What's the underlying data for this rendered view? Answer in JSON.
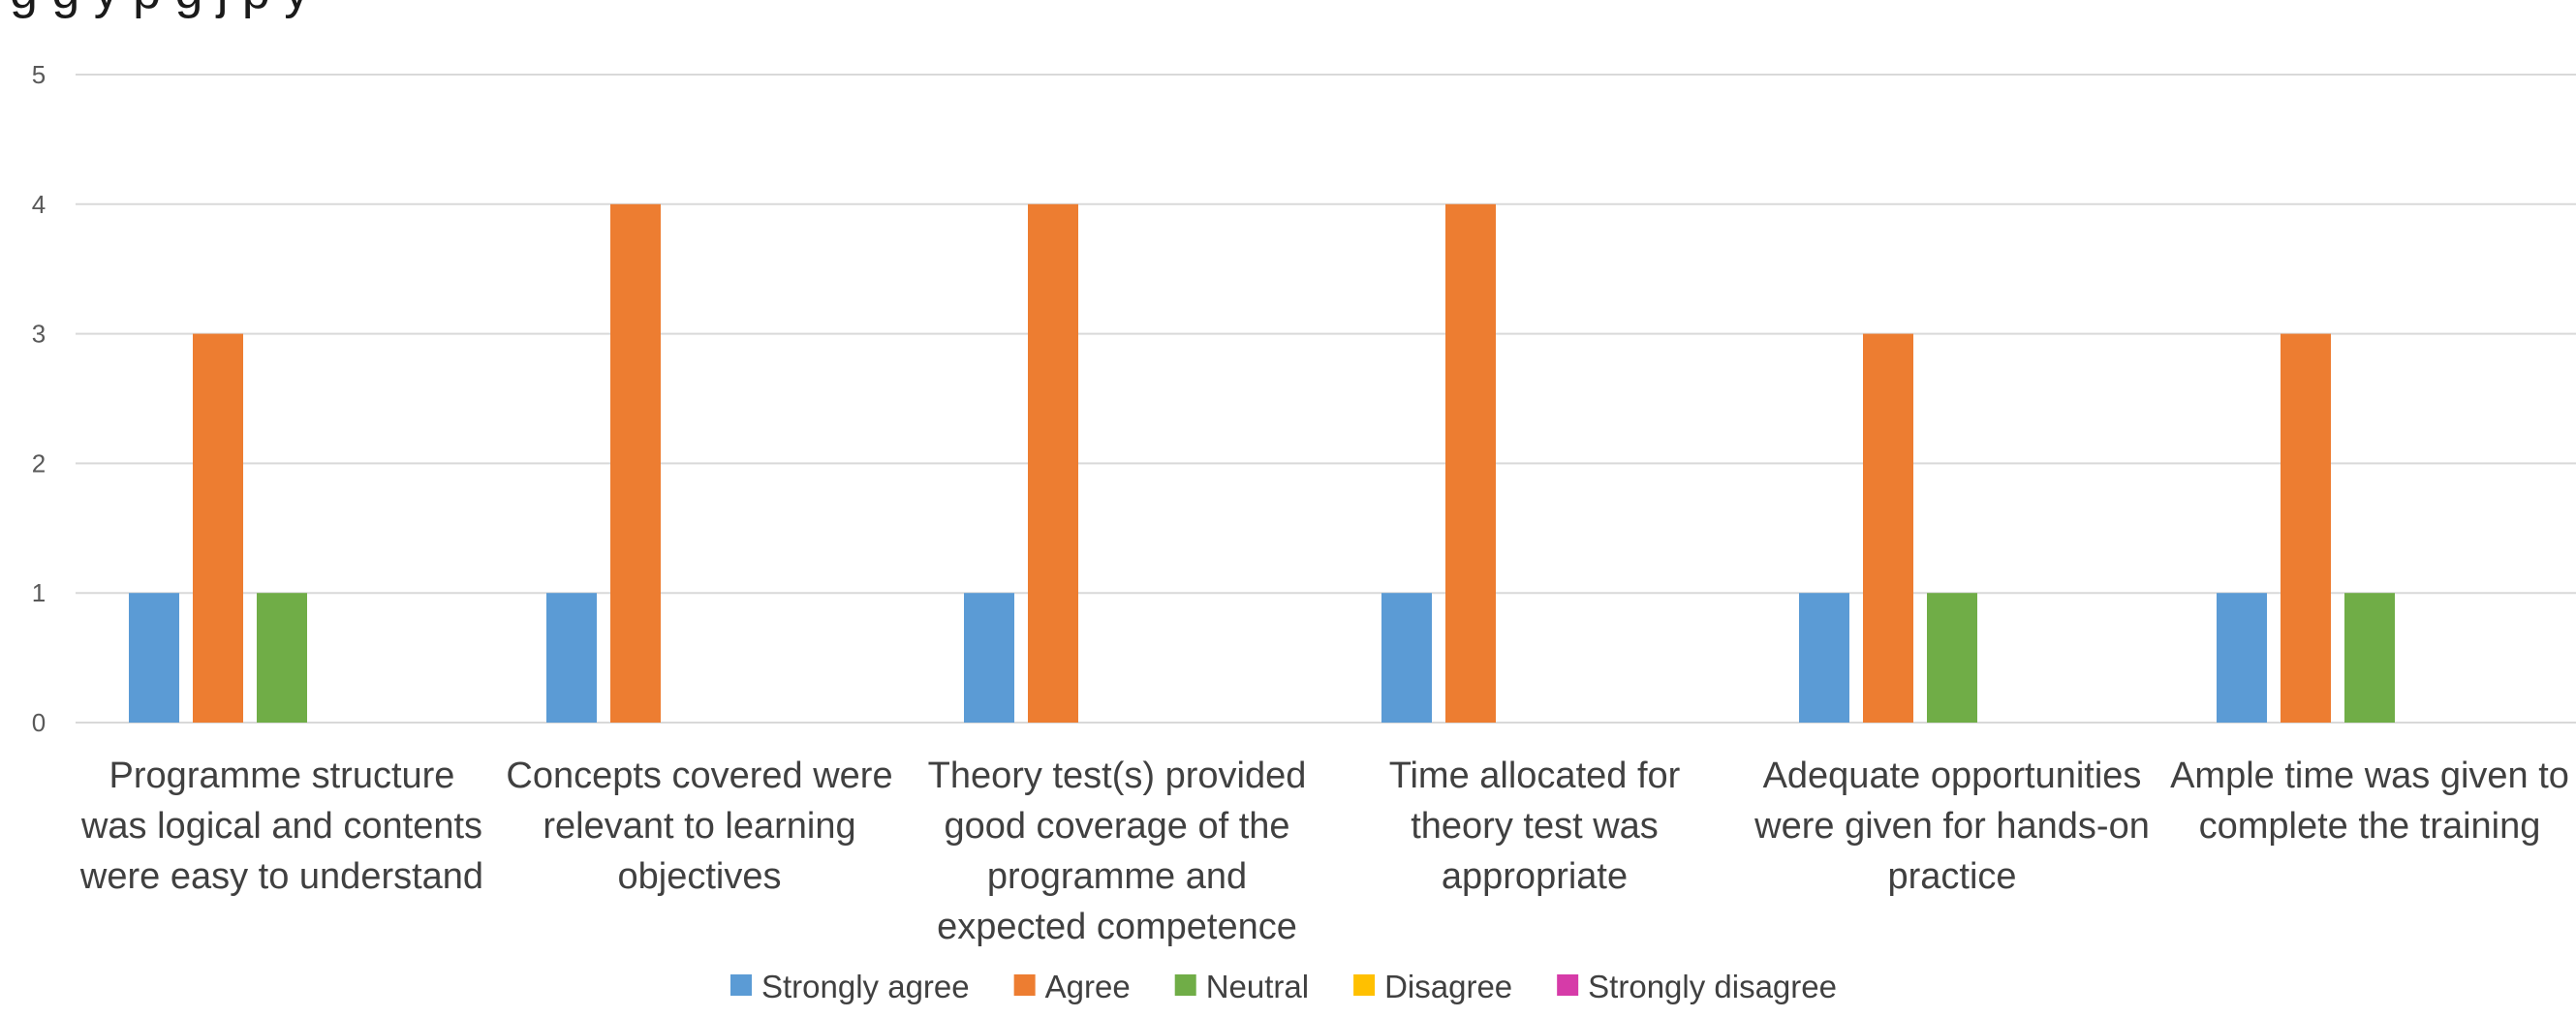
{
  "chart_data": {
    "type": "bar",
    "title": "g                  g      y   p                        g  j                   p   y",
    "categories": [
      [
        "Programme structure",
        "was logical and contents",
        "were easy to understand"
      ],
      [
        "Concepts covered were",
        "relevant to learning",
        "objectives"
      ],
      [
        "Theory test(s) provided",
        "good coverage of the",
        "programme and",
        "expected competence"
      ],
      [
        "Time allocated for",
        "theory test was",
        "appropriate"
      ],
      [
        "Adequate opportunities",
        "were given for hands-on",
        "practice"
      ],
      [
        "Ample time was given to",
        "complete the training"
      ]
    ],
    "series": [
      {
        "name": "Strongly agree",
        "color": "#5B9BD5",
        "values": [
          1,
          1,
          1,
          1,
          1,
          1
        ]
      },
      {
        "name": "Agree",
        "color": "#ED7D31",
        "values": [
          3,
          4,
          4,
          4,
          3,
          3
        ]
      },
      {
        "name": "Neutral",
        "color": "#70AD47",
        "values": [
          1,
          0,
          0,
          0,
          1,
          1
        ]
      },
      {
        "name": "Disagree",
        "color": "#FFC000",
        "values": [
          0,
          0,
          0,
          0,
          0,
          0
        ]
      },
      {
        "name": "Strongly disagree",
        "color": "#D63BA8",
        "values": [
          0,
          0,
          0,
          0,
          0,
          0
        ]
      }
    ],
    "ylim": [
      0,
      5
    ],
    "yticks": [
      0,
      1,
      2,
      3,
      4,
      5
    ],
    "grid": true,
    "legend": "bottom",
    "gridline_color": "#D9D9D9"
  }
}
